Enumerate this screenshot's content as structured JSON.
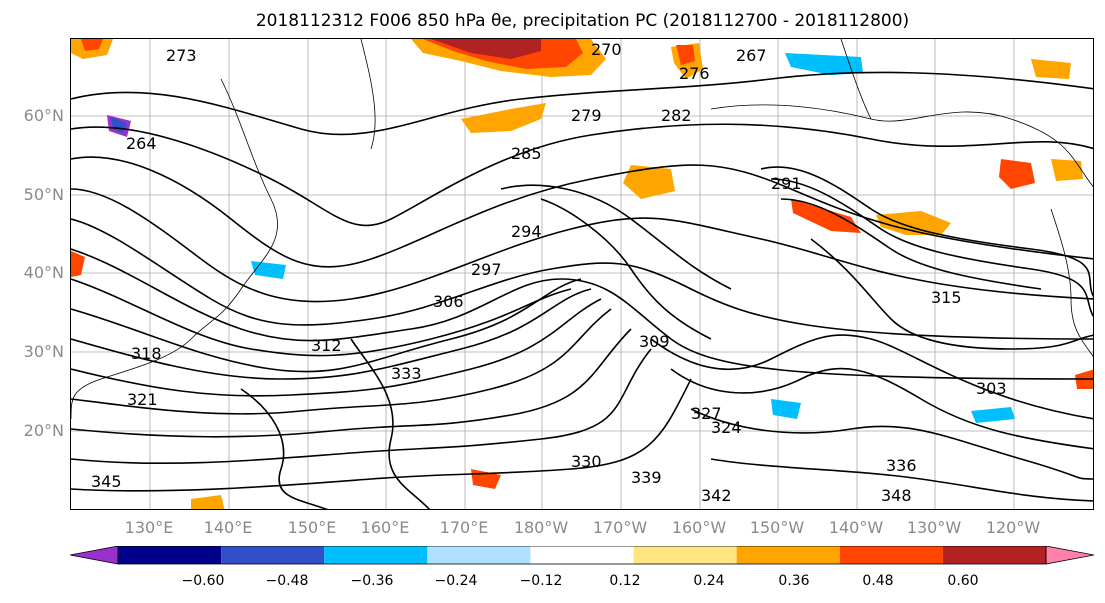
{
  "title": "2018112312 F006 850 hPa θe, precipitation PC (2018112700 - 2018112800)",
  "lat_labels": [
    "60°N",
    "50°N",
    "40°N",
    "30°N",
    "20°N"
  ],
  "lon_labels": [
    "130°E",
    "140°E",
    "150°E",
    "160°E",
    "170°E",
    "180°W",
    "170°W",
    "160°W",
    "150°W",
    "140°W",
    "130°W",
    "120°W"
  ],
  "contour_labels": [
    "276",
    "273",
    "267",
    "270",
    "279",
    "282",
    "285",
    "264",
    "291",
    "294",
    "297",
    "306",
    "315",
    "309",
    "312",
    "321",
    "333",
    "318",
    "303",
    "336",
    "330",
    "339",
    "342",
    "327",
    "324",
    "348",
    "345"
  ],
  "colorbar": {
    "colors": [
      "#9932cc",
      "#00008b",
      "#3050c8",
      "#00bfff",
      "#b0e0ff",
      "#ffffff",
      "#ffe680",
      "#ffa500",
      "#ff4500",
      "#b22222",
      "#ff80a8"
    ],
    "tick_labels": [
      "−0.60",
      "−0.48",
      "−0.36",
      "−0.24",
      "−0.12",
      "0.12",
      "0.24",
      "0.36",
      "0.48",
      "0.60"
    ]
  },
  "map_colors": {
    "contour": "#000000",
    "coast": "#000000",
    "grid": "#aaaaaa"
  }
}
